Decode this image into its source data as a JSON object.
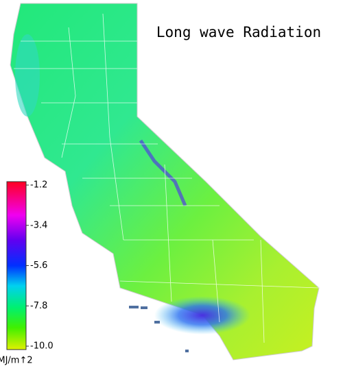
{
  "title": "Long wave Radiation",
  "colorbar": {
    "lim": [
      -10,
      -1.2
    ],
    "ticks": [
      -1.2,
      -3.4,
      -5.6,
      -7.8,
      {
        "value": -10,
        "label": "-10.0"
      }
    ],
    "unit": "MJ/m↑2"
  }
}
